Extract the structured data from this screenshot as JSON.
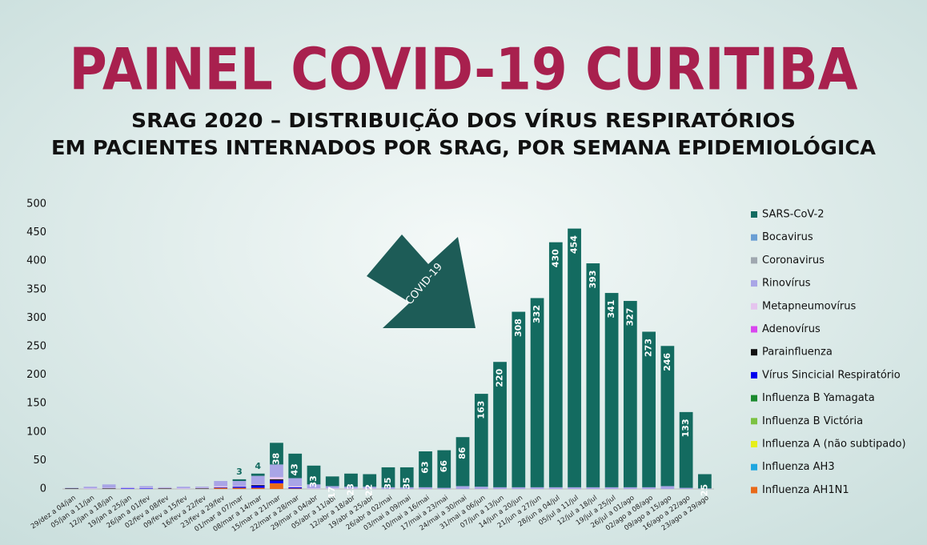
{
  "chart_data": {
    "type": "stacked-bar",
    "title": "PAINEL COVID-19 CURITIBA",
    "subtitle": [
      "SRAG 2020 –  DISTRIBUIÇÃO DOS VÍRUS RESPIRATÓRIOS",
      "EM PACIENTES INTERNADOS POR SRAG, POR SEMANA EPIDEMIOLÓGICA"
    ],
    "annotation": "COVID-19",
    "categories": [
      "29/dez a 04/jan",
      "05/jan a 11/jan",
      "12/jan a 18/jan",
      "19/jan a 25/jan",
      "26/jan a 01/fev",
      "02/fev a 08/fev",
      "09/fev a 15/fev",
      "16/fev a 22/fev",
      "23/fev a 29/fev",
      "01/mar a 07/mar",
      "08/mar a 14/mar",
      "15/mar a 21/mar",
      "22/mar a 28/mar",
      "29/mar a 04/abr",
      "05/abr a 11/abr",
      "12/abr a 18/abr",
      "19/abr a 25/abr",
      "26/abr a 02/mai",
      "03/mai a 09/mai",
      "10/mai a 16/mai",
      "17/mai a 23/mai",
      "24/mai a 30/mai",
      "31/mai a 06/jun",
      "07/jun a 13/jun",
      "14/jun a 20/jun",
      "21/jun a 27/jun",
      "28/jun a 04/jul",
      "05/jul a 11/jul",
      "12/jul a 18/jul",
      "19/jul a 25/jul",
      "26/jul a 01/ago",
      "02/ago a 08/ago",
      "09/ago a 15/ago",
      "16/ago a 22/ago",
      "23/ago a 29/ago"
    ],
    "series": [
      {
        "name": "SARS-CoV-2",
        "color": "#136b60",
        "values": [
          0,
          0,
          0,
          0,
          0,
          0,
          0,
          0,
          0,
          3,
          4,
          38,
          43,
          33,
          17,
          23,
          22,
          35,
          35,
          63,
          66,
          86,
          163,
          220,
          308,
          332,
          430,
          454,
          393,
          341,
          327,
          273,
          246,
          133,
          25
        ]
      },
      {
        "name": "Bocavirus",
        "color": "#6a9fd4",
        "values": [
          0,
          0,
          0,
          0,
          0,
          0,
          0,
          0,
          0,
          0,
          0,
          0,
          0,
          0,
          0,
          0,
          0,
          0,
          0,
          0,
          0,
          0,
          0,
          0,
          0,
          0,
          0,
          0,
          0,
          0,
          0,
          0,
          0,
          0,
          0
        ]
      },
      {
        "name": "Coronavirus",
        "color": "#a0a8b0",
        "values": [
          0,
          0,
          0,
          0,
          0,
          0,
          0,
          0,
          0,
          0,
          0,
          0,
          0,
          0,
          0,
          0,
          0,
          0,
          0,
          0,
          0,
          0,
          0,
          0,
          0,
          0,
          0,
          0,
          0,
          0,
          0,
          0,
          0,
          0,
          0
        ]
      },
      {
        "name": "Rinovírus",
        "color": "#a9a5e6",
        "values": [
          1,
          3,
          6,
          1,
          3,
          1,
          3,
          2,
          9,
          9,
          15,
          22,
          14,
          7,
          4,
          3,
          3,
          3,
          3,
          3,
          2,
          5,
          4,
          3,
          3,
          3,
          3,
          3,
          3,
          3,
          3,
          3,
          5,
          2,
          1
        ]
      },
      {
        "name": "Metapneumovírus",
        "color": "#e5c4ee",
        "values": [
          0,
          1,
          1,
          1,
          1,
          1,
          1,
          1,
          2,
          1,
          1,
          4,
          2,
          1,
          1,
          1,
          1,
          0,
          0,
          0,
          0,
          0,
          0,
          0,
          0,
          0,
          0,
          0,
          0,
          0,
          0,
          0,
          0,
          0,
          0
        ]
      },
      {
        "name": "Adenovírus",
        "color": "#d946ef",
        "values": [
          0,
          0,
          0,
          0,
          0,
          0,
          0,
          0,
          0,
          0,
          0,
          0,
          0,
          0,
          0,
          0,
          0,
          0,
          0,
          0,
          0,
          0,
          0,
          0,
          0,
          0,
          0,
          0,
          0,
          0,
          0,
          0,
          0,
          0,
          0
        ]
      },
      {
        "name": "Parainfluenza",
        "color": "#111111",
        "values": [
          1,
          0,
          1,
          0,
          0,
          1,
          0,
          1,
          0,
          0,
          1,
          2,
          0,
          0,
          0,
          0,
          0,
          0,
          0,
          0,
          0,
          0,
          0,
          0,
          0,
          0,
          0,
          0,
          0,
          0,
          0,
          0,
          0,
          0,
          0
        ]
      },
      {
        "name": "Vírus Sincicial Respiratório",
        "color": "#0000ee",
        "values": [
          0,
          0,
          0,
          1,
          1,
          0,
          0,
          0,
          1,
          2,
          4,
          5,
          2,
          0,
          0,
          0,
          0,
          0,
          0,
          0,
          0,
          0,
          0,
          0,
          0,
          0,
          0,
          0,
          0,
          0,
          0,
          0,
          0,
          0,
          0
        ]
      },
      {
        "name": "Influenza B Yamagata",
        "color": "#1a8a2e",
        "values": [
          0,
          0,
          0,
          0,
          0,
          0,
          0,
          0,
          0,
          0,
          0,
          0,
          0,
          0,
          0,
          0,
          0,
          0,
          0,
          0,
          0,
          0,
          0,
          0,
          0,
          0,
          0,
          0,
          0,
          0,
          0,
          0,
          0,
          0,
          0
        ]
      },
      {
        "name": "Influenza B Victória",
        "color": "#7cc242",
        "values": [
          0,
          0,
          0,
          0,
          0,
          0,
          0,
          0,
          0,
          0,
          0,
          0,
          0,
          0,
          0,
          0,
          0,
          0,
          0,
          0,
          0,
          0,
          0,
          0,
          0,
          0,
          0,
          0,
          0,
          0,
          0,
          0,
          0,
          0,
          0
        ]
      },
      {
        "name": "Influenza A (não subtipado)",
        "color": "#e6ef1a",
        "values": [
          0,
          0,
          0,
          0,
          0,
          0,
          0,
          0,
          0,
          0,
          0,
          0,
          0,
          0,
          0,
          0,
          0,
          0,
          0,
          0,
          0,
          0,
          0,
          0,
          0,
          0,
          0,
          0,
          0,
          0,
          0,
          0,
          0,
          0,
          0
        ]
      },
      {
        "name": "Influenza AH3",
        "color": "#1ea7e0",
        "values": [
          0,
          0,
          0,
          0,
          0,
          0,
          0,
          0,
          0,
          0,
          0,
          0,
          0,
          0,
          0,
          0,
          0,
          0,
          0,
          0,
          0,
          0,
          0,
          0,
          0,
          0,
          0,
          0,
          0,
          0,
          0,
          0,
          0,
          0,
          0
        ]
      },
      {
        "name": "Influenza AH1N1",
        "color": "#e86a1a",
        "values": [
          0,
          0,
          0,
          0,
          0,
          0,
          0,
          0,
          2,
          2,
          2,
          10,
          1,
          0,
          0,
          0,
          0,
          0,
          0,
          0,
          0,
          0,
          0,
          0,
          0,
          0,
          0,
          0,
          0,
          0,
          0,
          0,
          0,
          0,
          0
        ]
      }
    ],
    "ylim": [
      0,
      500
    ],
    "yticks": [
      0,
      50,
      100,
      150,
      200,
      250,
      300,
      350,
      400,
      450,
      500
    ],
    "legend": "right"
  }
}
